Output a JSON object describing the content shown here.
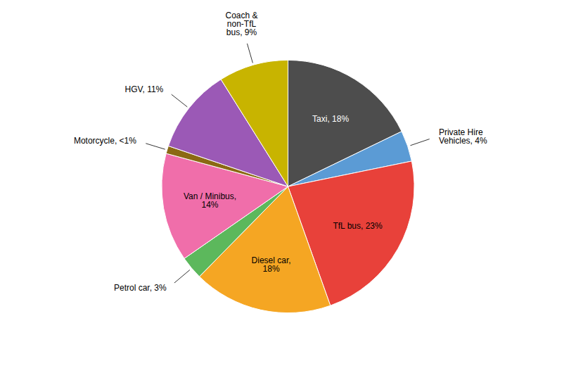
{
  "chart_data": {
    "type": "pie",
    "categories": [
      "Taxi, 18%",
      "Private Hire\nVehicles, 4%",
      "TfL bus, 23%",
      "Diesel car,\n18%",
      "Petrol car, 3%",
      "Van / Minibus,\n14%",
      "Motorcycle, <1%",
      "HGV, 11%",
      "Coach &\nnon-TfL\nbus, 9%"
    ],
    "values": [
      18,
      4,
      23,
      18,
      3,
      14,
      1,
      11,
      9
    ],
    "colors": [
      "#4d4d4d",
      "#5b9bd5",
      "#e8413a",
      "#f5a623",
      "#5cb85c",
      "#f06eaa",
      "#8b6914",
      "#9b59b6",
      "#c8b400"
    ]
  }
}
